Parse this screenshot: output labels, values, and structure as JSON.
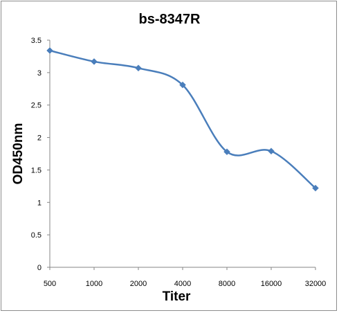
{
  "chart_data": {
    "type": "line",
    "title": "bs-8347R",
    "xlabel": "Titer",
    "ylabel": "OD450nm",
    "categories": [
      "500",
      "1000",
      "2000",
      "4000",
      "8000",
      "16000",
      "32000"
    ],
    "series": [
      {
        "values": [
          3.34,
          3.17,
          3.07,
          2.81,
          1.78,
          1.79,
          1.22
        ]
      }
    ],
    "ylim": [
      0,
      3.5
    ],
    "yticks": [
      "0",
      "0.5",
      "1",
      "1.5",
      "2",
      "2.5",
      "3",
      "3.5"
    ],
    "grid": false,
    "legend": "none",
    "smooth": true,
    "colors": {
      "series": "#4a7ebb",
      "axis": "#868686",
      "frame": "#8c8c8c"
    },
    "marker": "diamond"
  }
}
